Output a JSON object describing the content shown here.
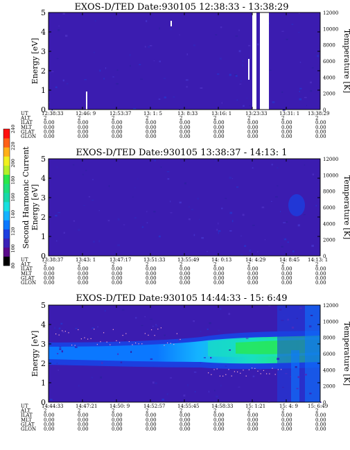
{
  "colors": {
    "background": "#3b1cb0",
    "colorbar": [
      "#000000",
      "#5a0a8a",
      "#3a22b8",
      "#1c3fe0",
      "#0b78ff",
      "#14b3ff",
      "#18e0e0",
      "#18d8a8",
      "#1ee07a",
      "#2ae84a",
      "#b4f028",
      "#f0f020",
      "#ffb018",
      "#ff6018",
      "#ff1010"
    ]
  },
  "colorbar": {
    "label": "Second Harmonic Current",
    "ticks": [
      "80",
      "100",
      "120",
      "140",
      "160",
      "180",
      "200",
      "220",
      "240"
    ]
  },
  "row_labels": [
    "UT",
    "ALT",
    "ILAT",
    "MLT",
    "GLAT",
    "GLON"
  ],
  "chart_data": [
    {
      "type": "heatmap",
      "title": "EXOS-D/TED   Date:930105   12:38:33 - 13:38:29",
      "ylabel": "Energy [eV]",
      "ylabel_right": "Temperature [K]",
      "ylim": [
        0,
        5
      ],
      "y_ticks": [
        "0",
        "1",
        "2",
        "3",
        "4",
        "5"
      ],
      "y2lim": [
        0,
        12000
      ],
      "y2_ticks": [
        "0",
        "2000",
        "4000",
        "6000",
        "8000",
        "10000",
        "12000"
      ],
      "ut": [
        "12:38:33",
        "12:46: 9",
        "12:53:37",
        "13: 1: 5",
        "13: 8:33",
        "13:16: 1",
        "13:23:33",
        "13:31: 1",
        "13:38:29"
      ],
      "alt": [
        "2",
        "2",
        "2",
        "2",
        "2",
        "2",
        "2",
        "2",
        "2"
      ],
      "ilat": [
        "0.00",
        "0.00",
        "0.00",
        "0.00",
        "0.00",
        "0.00",
        "0.00",
        "0.00",
        "0.00"
      ],
      "mlt": [
        "0.00",
        "0.00",
        "0.00",
        "0.00",
        "0.00",
        "0.00",
        "0.00",
        "0.00",
        "0.00"
      ],
      "glat": [
        "0.00",
        "0.00",
        "0.00",
        "0.00",
        "0.00",
        "0.00",
        "0.00",
        "0.00",
        "0.00"
      ],
      "glon": [
        "0.00",
        "0.00",
        "0.00",
        "0.00",
        "0.00",
        "0.00",
        "0.00",
        "0.00",
        "0.00"
      ]
    },
    {
      "type": "heatmap",
      "title": "EXOS-D/TED   Date:930105   13:38:37 - 14:13: 1",
      "ylabel": "Energy [eV]",
      "ylabel_right": "Temperature [K]",
      "ylim": [
        0,
        5
      ],
      "y_ticks": [
        "0",
        "1",
        "2",
        "3",
        "4",
        "5"
      ],
      "y2lim": [
        0,
        12000
      ],
      "y2_ticks": [
        "0",
        "2000",
        "4000",
        "6000",
        "8000",
        "10000",
        "12000"
      ],
      "ut": [
        "13:38:37",
        "13:43: 1",
        "13:47:17",
        "13:51:33",
        "13:55:49",
        "14: 0:13",
        "14: 4:29",
        "14: 8:45",
        "14:13: 1"
      ],
      "alt": [
        "2",
        "2",
        "2",
        "2",
        "2",
        "2",
        "2",
        "2",
        "2"
      ],
      "ilat": [
        "0.00",
        "0.00",
        "0.00",
        "0.00",
        "0.00",
        "0.00",
        "0.00",
        "0.00",
        "0.00"
      ],
      "mlt": [
        "0.00",
        "0.00",
        "0.00",
        "0.00",
        "0.00",
        "0.00",
        "0.00",
        "0.00",
        "0.00"
      ],
      "glat": [
        "0.00",
        "0.00",
        "0.00",
        "0.00",
        "0.00",
        "0.00",
        "0.00",
        "0.00",
        "0.00"
      ],
      "glon": [
        "0.00",
        "0.00",
        "0.00",
        "0.00",
        "0.00",
        "0.00",
        "0.00",
        "0.00",
        "0.00"
      ]
    },
    {
      "type": "heatmap",
      "title": "EXOS-D/TED   Date:930105   14:44:33 - 15: 6:49",
      "ylabel": "Energy [eV]",
      "ylabel_right": "Temperature [K]",
      "ylim": [
        0,
        5
      ],
      "y_ticks": [
        "0",
        "1",
        "2",
        "3",
        "4",
        "5"
      ],
      "y2lim": [
        0,
        12000
      ],
      "y2_ticks": [
        "0",
        "2000",
        "4000",
        "6000",
        "8000",
        "10000",
        "12000"
      ],
      "ut": [
        "14:44:33",
        "14:47:21",
        "14:50: 9",
        "14:52:57",
        "14:55:45",
        "14:58:33",
        "15: 1:21",
        "15: 4: 9",
        "15: 6:49"
      ],
      "alt": [
        "2",
        "2",
        "2",
        "2",
        "2",
        "2",
        "2",
        "2",
        "2"
      ],
      "ilat": [
        "0.00",
        "0.00",
        "0.00",
        "0.00",
        "0.00",
        "0.00",
        "0.00",
        "0.00",
        "0.00"
      ],
      "mlt": [
        "0.00",
        "0.00",
        "0.00",
        "0.00",
        "0.00",
        "0.00",
        "0.00",
        "0.00",
        "0.00"
      ],
      "glat": [
        "0.00",
        "0.00",
        "0.00",
        "0.00",
        "0.00",
        "0.00",
        "0.00",
        "0.00",
        "0.00"
      ],
      "glon": [
        "0.00",
        "0.00",
        "0.00",
        "0.00",
        "0.00",
        "0.00",
        "0.00",
        "0.00",
        "0.00"
      ]
    }
  ]
}
